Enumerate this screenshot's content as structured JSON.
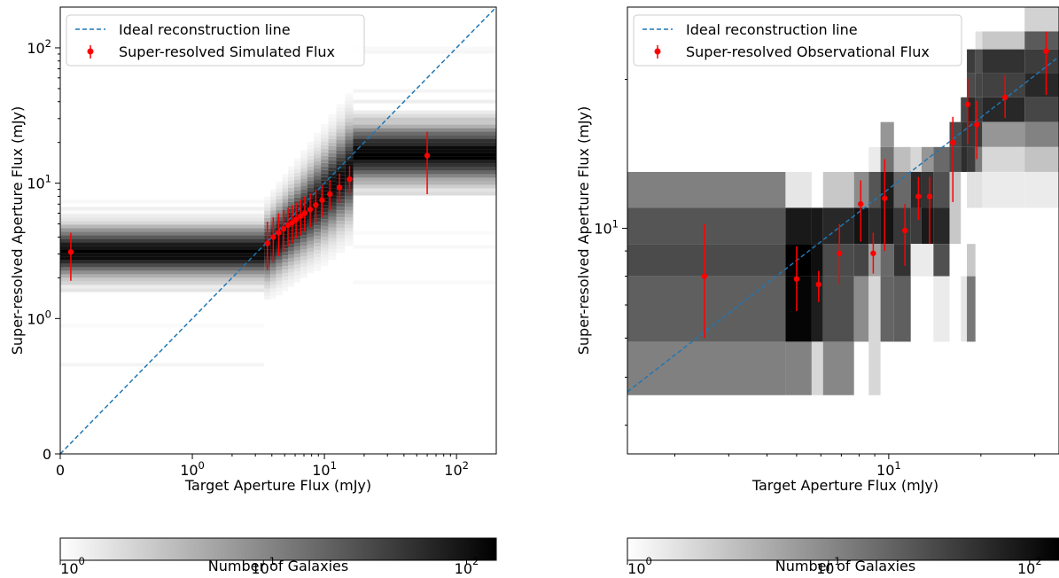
{
  "chart_data": [
    {
      "type": "heatmap",
      "panel": "left",
      "xlabel": "Target Aperture Flux (mJy)",
      "ylabel": "Super-resolved Aperture Flux (mJy)",
      "x_scale": "symlog",
      "y_scale": "symlog",
      "xlim": [
        0,
        200
      ],
      "ylim": [
        0,
        200
      ],
      "x_ticks": [
        {
          "value": 0,
          "label": "0"
        },
        {
          "value": 1,
          "label": "10",
          "exp": "0"
        },
        {
          "value": 10,
          "label": "10",
          "exp": "1"
        },
        {
          "value": 100,
          "label": "10",
          "exp": "2"
        }
      ],
      "y_ticks": [
        {
          "value": 0,
          "label": "0"
        },
        {
          "value": 1,
          "label": "10",
          "exp": "0"
        },
        {
          "value": 10,
          "label": "10",
          "exp": "1"
        },
        {
          "value": 100,
          "label": "10",
          "exp": "2"
        }
      ],
      "legend": {
        "placement": "upper-left",
        "entries": [
          {
            "label": "Ideal reconstruction line",
            "style": "dashed",
            "color": "#1f77b4"
          },
          {
            "label": "Super-resolved Simulated Flux",
            "style": "errorbar",
            "color": "#ff0000"
          }
        ]
      },
      "series": [
        {
          "name": "Super-resolved Simulated Flux",
          "points": [
            {
              "x": 0.08,
              "y": 3.1,
              "lo": 1.9,
              "hi": 4.3
            },
            {
              "x": 3.7,
              "y": 3.6,
              "lo": 2.3,
              "hi": 5.2
            },
            {
              "x": 4.1,
              "y": 4.0,
              "lo": 2.6,
              "hi": 5.6
            },
            {
              "x": 4.5,
              "y": 4.3,
              "lo": 2.9,
              "hi": 6.0
            },
            {
              "x": 4.9,
              "y": 4.6,
              "lo": 3.1,
              "hi": 6.3
            },
            {
              "x": 5.3,
              "y": 4.9,
              "lo": 3.4,
              "hi": 6.6
            },
            {
              "x": 5.7,
              "y": 5.1,
              "lo": 3.6,
              "hi": 6.9
            },
            {
              "x": 6.1,
              "y": 5.4,
              "lo": 3.9,
              "hi": 7.2
            },
            {
              "x": 6.6,
              "y": 5.7,
              "lo": 4.1,
              "hi": 7.6
            },
            {
              "x": 7.1,
              "y": 6.0,
              "lo": 4.4,
              "hi": 8.0
            },
            {
              "x": 7.8,
              "y": 6.4,
              "lo": 4.7,
              "hi": 8.4
            },
            {
              "x": 8.6,
              "y": 6.9,
              "lo": 5.1,
              "hi": 9.0
            },
            {
              "x": 9.6,
              "y": 7.5,
              "lo": 5.6,
              "hi": 9.7
            },
            {
              "x": 11.0,
              "y": 8.3,
              "lo": 6.3,
              "hi": 10.6
            },
            {
              "x": 13.0,
              "y": 9.3,
              "lo": 7.1,
              "hi": 11.8
            },
            {
              "x": 15.5,
              "y": 10.7,
              "lo": 8.3,
              "hi": 13.4
            },
            {
              "x": 60.0,
              "y": 16.0,
              "lo": 8.3,
              "hi": 24.0
            }
          ]
        }
      ],
      "colorbar": {
        "label": "Number of Galaxies",
        "scale": "log",
        "range": [
          1,
          140
        ],
        "ticks": [
          {
            "value": 1,
            "label": "10",
            "exp": "0"
          },
          {
            "value": 10,
            "label": "10",
            "exp": "1"
          },
          {
            "value": 100,
            "label": "10",
            "exp": "2"
          }
        ]
      }
    },
    {
      "type": "heatmap",
      "panel": "right",
      "xlabel": "Target Aperture Flux (mJy)",
      "ylabel": "Super-resolved Aperture Flux (mJy)",
      "x_scale": "log",
      "y_scale": "log",
      "xlim": [
        1.4,
        36
      ],
      "ylim": [
        3.5,
        28
      ],
      "x_ticks": [
        {
          "value": 10,
          "label": "10",
          "exp": "1"
        }
      ],
      "y_ticks": [
        {
          "value": 10,
          "label": "10",
          "exp": "1"
        }
      ],
      "legend": {
        "placement": "upper-left",
        "entries": [
          {
            "label": "Ideal reconstruction line",
            "style": "dashed",
            "color": "#1f77b4"
          },
          {
            "label": "Super-resolved Observational Flux",
            "style": "errorbar",
            "color": "#ff0000"
          }
        ]
      },
      "series": [
        {
          "name": "Super-resolved Observational Flux",
          "points": [
            {
              "x": 2.5,
              "y": 8.0,
              "lo": 6.0,
              "hi": 10.2
            },
            {
              "x": 5.0,
              "y": 7.9,
              "lo": 6.8,
              "hi": 9.2
            },
            {
              "x": 5.9,
              "y": 7.7,
              "lo": 7.1,
              "hi": 8.2
            },
            {
              "x": 6.9,
              "y": 8.9,
              "lo": 7.7,
              "hi": 10.2
            },
            {
              "x": 8.1,
              "y": 11.2,
              "lo": 9.4,
              "hi": 12.5
            },
            {
              "x": 8.9,
              "y": 8.9,
              "lo": 8.1,
              "hi": 9.8
            },
            {
              "x": 9.7,
              "y": 11.5,
              "lo": 9.0,
              "hi": 13.8
            },
            {
              "x": 11.3,
              "y": 9.9,
              "lo": 8.4,
              "hi": 11.2
            },
            {
              "x": 12.5,
              "y": 11.6,
              "lo": 10.4,
              "hi": 12.7
            },
            {
              "x": 13.6,
              "y": 11.6,
              "lo": 9.3,
              "hi": 12.7
            },
            {
              "x": 16.2,
              "y": 14.9,
              "lo": 11.3,
              "hi": 16.8
            },
            {
              "x": 18.1,
              "y": 17.8,
              "lo": 14.8,
              "hi": 20.1
            },
            {
              "x": 19.4,
              "y": 16.2,
              "lo": 13.8,
              "hi": 18.1
            },
            {
              "x": 24.0,
              "y": 18.4,
              "lo": 16.7,
              "hi": 20.4
            },
            {
              "x": 32.7,
              "y": 22.8,
              "lo": 18.6,
              "hi": 25.0
            }
          ]
        }
      ],
      "colorbar": {
        "label": "Number of Galaxies",
        "scale": "log",
        "range": [
          1,
          140
        ],
        "ticks": [
          {
            "value": 1,
            "label": "10",
            "exp": "0"
          },
          {
            "value": 10,
            "label": "10",
            "exp": "1"
          },
          {
            "value": 100,
            "label": "10",
            "exp": "2"
          }
        ]
      }
    }
  ]
}
